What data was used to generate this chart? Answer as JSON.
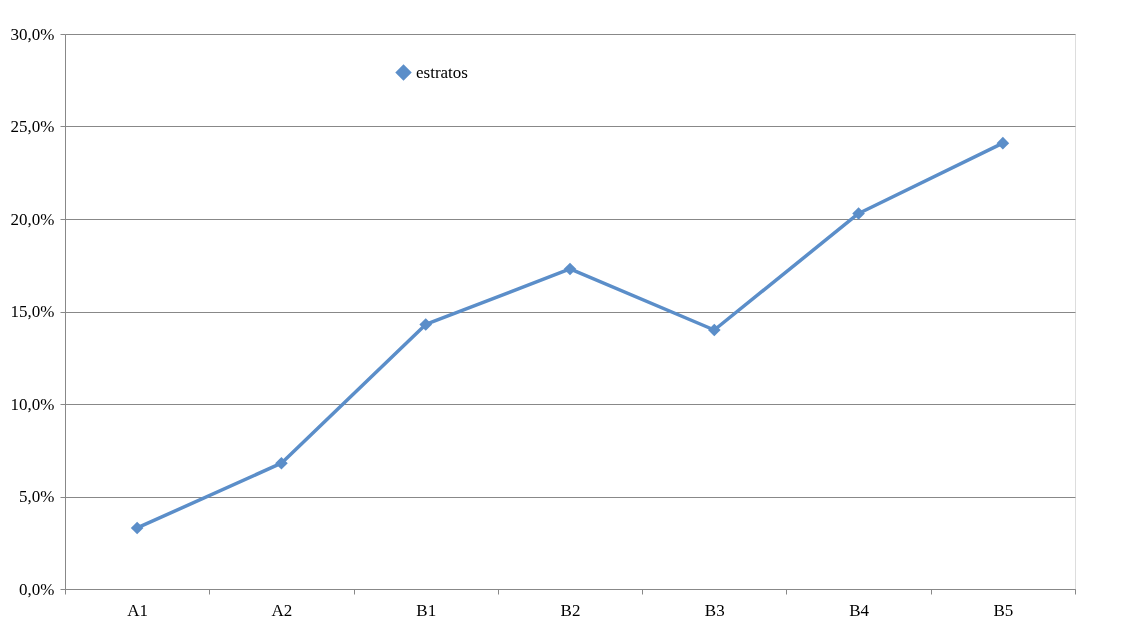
{
  "chart_data": {
    "type": "line",
    "categories": [
      "A1",
      "A2",
      "B1",
      "B2",
      "B3",
      "B4",
      "B5"
    ],
    "series": [
      {
        "name": "estratos",
        "color": "#5b8ec9",
        "values": [
          3.3,
          6.8,
          14.3,
          17.3,
          14.0,
          20.3,
          24.1
        ]
      }
    ],
    "ylim": [
      0,
      30
    ],
    "yticks": [
      {
        "value": 0,
        "label": "0,0%"
      },
      {
        "value": 5,
        "label": "5,0%"
      },
      {
        "value": 10,
        "label": "10,0%"
      },
      {
        "value": 15,
        "label": "15,0%"
      },
      {
        "value": 20,
        "label": "20,0%"
      },
      {
        "value": 25,
        "label": "25,0%"
      },
      {
        "value": 30,
        "label": "30,0%"
      }
    ],
    "grid": "y",
    "legend": "top",
    "marker": "diamond",
    "line_style": "solid"
  }
}
